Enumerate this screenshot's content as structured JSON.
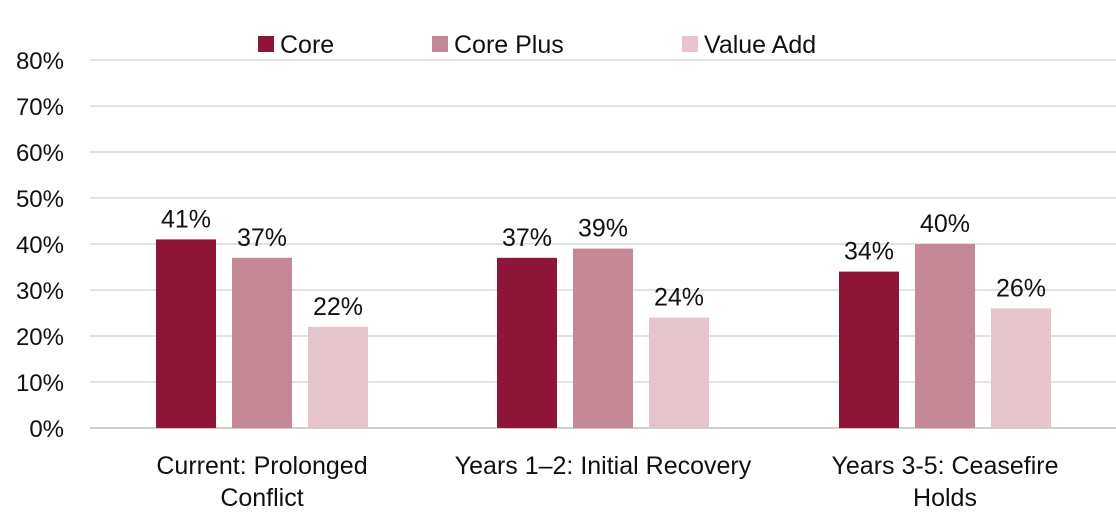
{
  "chart_data": {
    "type": "bar",
    "categories": [
      [
        "Current: Prolonged",
        "Conflict"
      ],
      [
        "Years 1–2: Initial Recovery"
      ],
      [
        "Years 3-5: Ceasefire",
        "Holds"
      ]
    ],
    "series": [
      {
        "name": "Core",
        "color": "#8e1537",
        "values": [
          41,
          37,
          34
        ],
        "labels": [
          "41%",
          "37%",
          "34%"
        ]
      },
      {
        "name": "Core Plus",
        "color": "#c48896",
        "values": [
          37,
          39,
          40
        ],
        "labels": [
          "37%",
          "39%",
          "40%"
        ]
      },
      {
        "name": "Value Add",
        "color": "#e6c4cc",
        "values": [
          22,
          24,
          26
        ],
        "labels": [
          "22%",
          "24%",
          "26%"
        ]
      }
    ],
    "ylim": [
      0,
      80
    ],
    "yticks": [
      0,
      10,
      20,
      30,
      40,
      50,
      60,
      70,
      80
    ],
    "ytick_labels": [
      "0%",
      "10%",
      "20%",
      "30%",
      "40%",
      "50%",
      "60%",
      "70%",
      "80%"
    ],
    "grid": true,
    "legend_position": "top"
  }
}
